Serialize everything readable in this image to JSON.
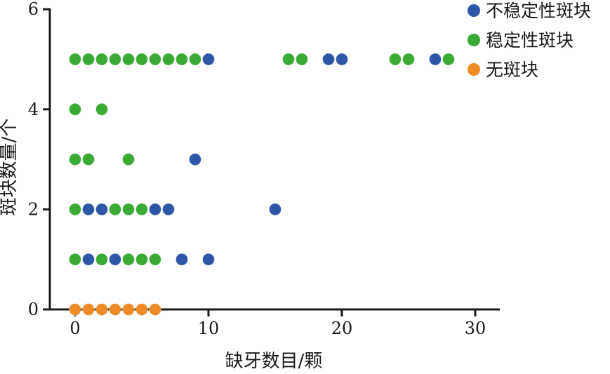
{
  "chart_data": {
    "type": "scatter",
    "xlabel": "缺牙数目/颗",
    "ylabel": "斑块数量/个",
    "xlim": [
      -1.5,
      32
    ],
    "ylim": [
      0,
      6
    ],
    "xticks": [
      0,
      10,
      20,
      30
    ],
    "yticks": [
      0,
      2,
      4,
      6
    ],
    "grid": false,
    "legend_position": "top-right",
    "series": [
      {
        "name": "不稳定性斑块",
        "color": "#2e56a6",
        "points": [
          [
            10,
            5
          ],
          [
            19,
            5
          ],
          [
            20,
            5
          ],
          [
            27,
            5
          ],
          [
            9,
            3
          ],
          [
            1,
            2
          ],
          [
            2,
            2
          ],
          [
            6,
            2
          ],
          [
            7,
            2
          ],
          [
            15,
            2
          ],
          [
            1,
            1
          ],
          [
            3,
            1
          ],
          [
            8,
            1
          ],
          [
            10,
            1
          ]
        ]
      },
      {
        "name": "稳定性斑块",
        "color": "#3aaa35",
        "points": [
          [
            0,
            5
          ],
          [
            1,
            5
          ],
          [
            2,
            5
          ],
          [
            3,
            5
          ],
          [
            4,
            5
          ],
          [
            5,
            5
          ],
          [
            6,
            5
          ],
          [
            7,
            5
          ],
          [
            8,
            5
          ],
          [
            9,
            5
          ],
          [
            16,
            5
          ],
          [
            17,
            5
          ],
          [
            24,
            5
          ],
          [
            25,
            5
          ],
          [
            28,
            5
          ],
          [
            0,
            4
          ],
          [
            2,
            4
          ],
          [
            0,
            3
          ],
          [
            1,
            3
          ],
          [
            4,
            3
          ],
          [
            0,
            2
          ],
          [
            3,
            2
          ],
          [
            4,
            2
          ],
          [
            5,
            2
          ],
          [
            0,
            1
          ],
          [
            2,
            1
          ],
          [
            4,
            1
          ],
          [
            5,
            1
          ],
          [
            6,
            1
          ]
        ]
      },
      {
        "name": "无斑块",
        "color": "#f08a24",
        "points": [
          [
            0,
            0
          ],
          [
            1,
            0
          ],
          [
            2,
            0
          ],
          [
            3,
            0
          ],
          [
            4,
            0
          ],
          [
            5,
            0
          ],
          [
            6,
            0
          ]
        ]
      }
    ]
  }
}
